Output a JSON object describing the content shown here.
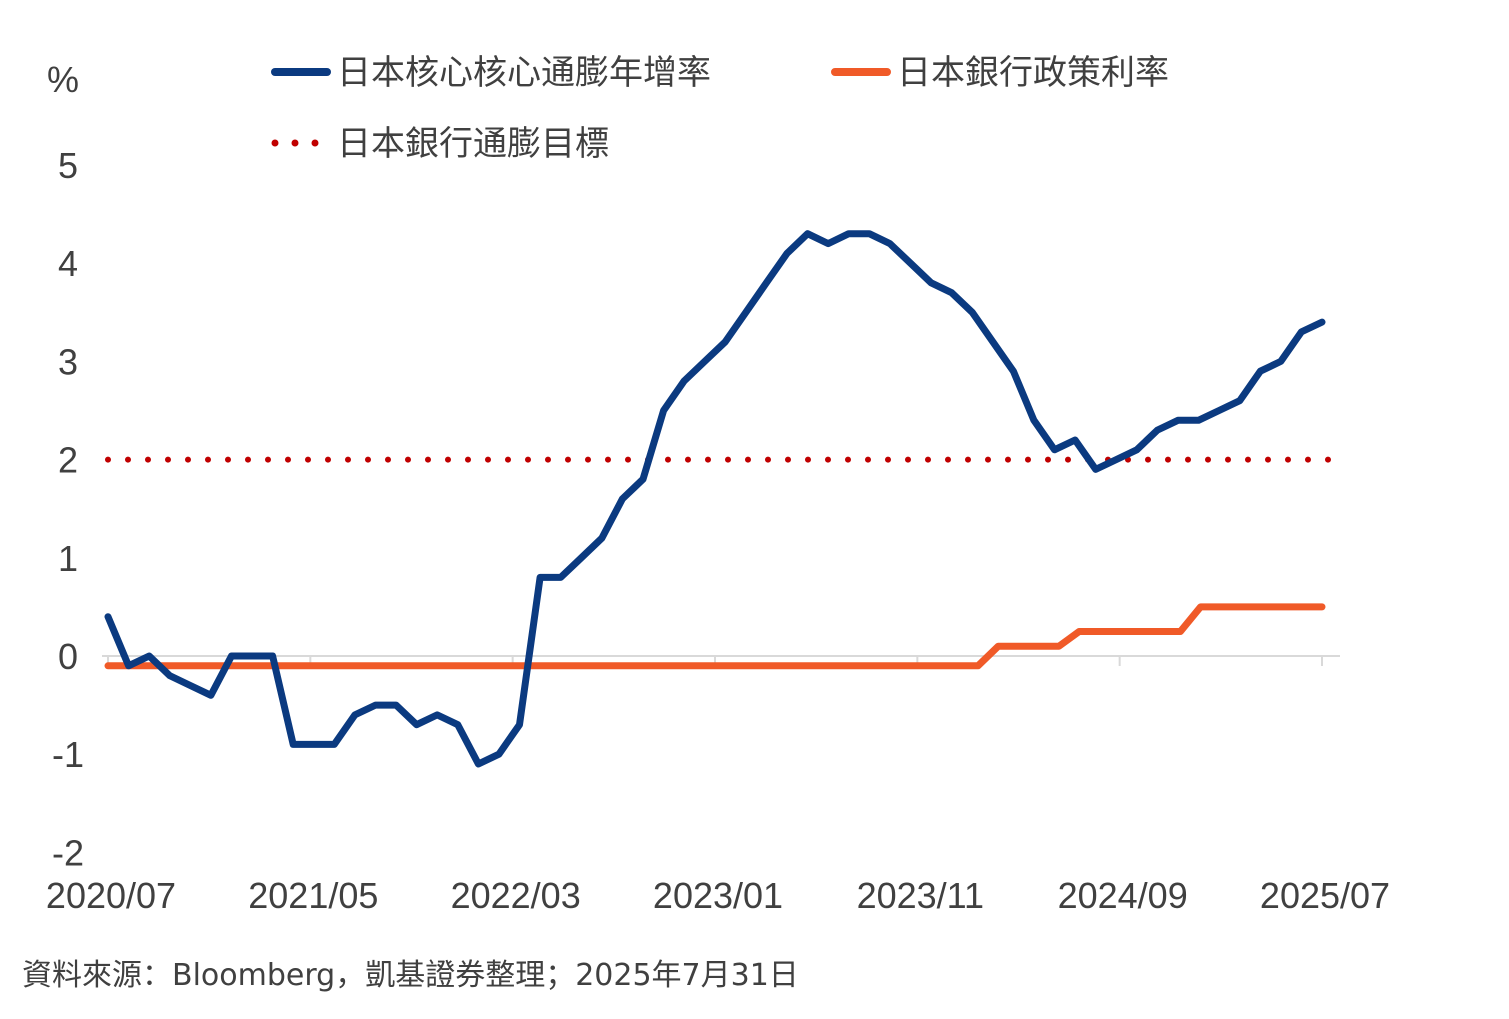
{
  "chart_data": {
    "type": "line",
    "y_unit_label": "%",
    "ylim": [
      -2,
      5
    ],
    "y_ticks": [
      "5",
      "4",
      "3",
      "2",
      "1",
      "0",
      "-1",
      "-2"
    ],
    "x_tick_labels": [
      "2020/07",
      "2021/05",
      "2022/03",
      "2023/01",
      "2023/11",
      "2024/09",
      "2025/07"
    ],
    "x_start": "2020/07",
    "x_end": "2025/07",
    "legend_position": "top",
    "series": [
      {
        "name": "日本核心核心通膨年增率",
        "color": "#0B3A80",
        "style": "solid",
        "values": [
          0.4,
          -0.1,
          0.0,
          -0.2,
          -0.3,
          -0.4,
          0.0,
          0.0,
          0.0,
          -0.9,
          -0.9,
          -0.9,
          -0.6,
          -0.5,
          -0.5,
          -0.7,
          -0.6,
          -0.7,
          -1.1,
          -1.0,
          -0.7,
          0.8,
          0.8,
          1.0,
          1.2,
          1.6,
          1.8,
          2.5,
          2.8,
          3.0,
          3.2,
          3.5,
          3.8,
          4.1,
          4.3,
          4.2,
          4.3,
          4.3,
          4.2,
          4.0,
          3.8,
          3.7,
          3.5,
          3.2,
          2.9,
          2.4,
          2.1,
          2.2,
          1.9,
          2.0,
          2.1,
          2.3,
          2.4,
          2.4,
          2.5,
          2.6,
          2.9,
          3.0,
          3.3,
          3.4
        ]
      },
      {
        "name": "日本銀行政策利率",
        "color": "#F05A28",
        "style": "solid",
        "values": [
          -0.1,
          -0.1,
          -0.1,
          -0.1,
          -0.1,
          -0.1,
          -0.1,
          -0.1,
          -0.1,
          -0.1,
          -0.1,
          -0.1,
          -0.1,
          -0.1,
          -0.1,
          -0.1,
          -0.1,
          -0.1,
          -0.1,
          -0.1,
          -0.1,
          -0.1,
          -0.1,
          -0.1,
          -0.1,
          -0.1,
          -0.1,
          -0.1,
          -0.1,
          -0.1,
          -0.1,
          -0.1,
          -0.1,
          -0.1,
          -0.1,
          -0.1,
          -0.1,
          -0.1,
          -0.1,
          -0.1,
          -0.1,
          -0.1,
          -0.1,
          -0.1,
          0.1,
          0.1,
          0.1,
          0.1,
          0.25,
          0.25,
          0.25,
          0.25,
          0.25,
          0.25,
          0.5,
          0.5,
          0.5,
          0.5,
          0.5,
          0.5,
          0.5
        ]
      },
      {
        "name": "日本銀行通膨目標",
        "color": "#C00000",
        "style": "dotted",
        "values": [
          2,
          2
        ]
      }
    ]
  },
  "source_note": "資料來源：Bloomberg，凱基證券整理；2025年7月31日"
}
